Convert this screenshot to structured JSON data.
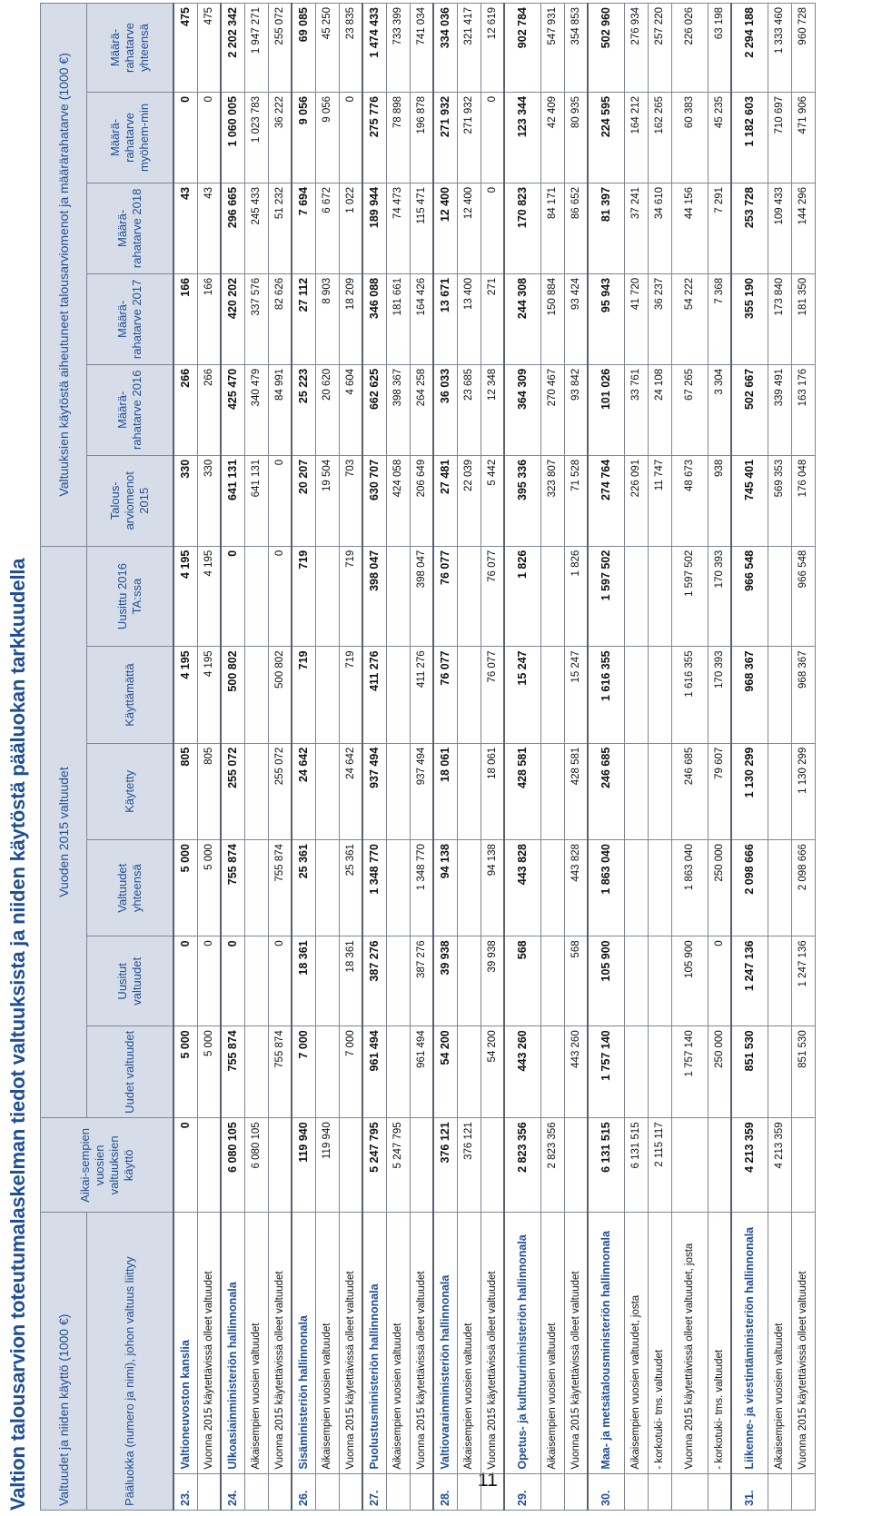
{
  "title": "Valtion talousarvion toteutumalaskelman tiedot valtuuksista ja niiden käytöstä pääluokan tarkkuudella",
  "page_number": "11",
  "header": {
    "group1": "Valtuudet ja niiden käyttö (1000 €)",
    "group2": "Vuoden 2015 valtuudet",
    "group3": "Valtuuksien käytöstä aiheutuneet talousarviomenot ja määrärahatarve (1000 €)",
    "col_label": "Pääluokka (numero ja nimi), johon valtuus liittyy",
    "col_aikai": "Aikai-sempien vuosien valtuuksien käyttö",
    "cols": [
      "Uudet valtuudet",
      "Uusitut valtuudet",
      "Valtuudet yhteensä",
      "Käytetty",
      "Käyttämättä",
      "Uusittu 2016 TA:ssa",
      "Talous-arviomenot 2015",
      "Määrä-rahatarve 2016",
      "Määrä-rahatarve 2017",
      "Määrä-rahatarve 2018",
      "Määrä-rahatarve myöhem-min",
      "Määrä-rahatarve yhteensä"
    ]
  },
  "rows": [
    {
      "nr": "23.",
      "type": "main",
      "label": "Valtioneuvoston kanslia",
      "v": [
        "0",
        "5 000",
        "0",
        "5 000",
        "805",
        "4 195",
        "4 195",
        "330",
        "266",
        "166",
        "43",
        "0",
        "475"
      ]
    },
    {
      "nr": "",
      "type": "sub",
      "label": "Vuonna 2015 käytettävissä olleet valtuudet",
      "v": [
        "",
        "5 000",
        "0",
        "5 000",
        "805",
        "4 195",
        "4 195",
        "330",
        "266",
        "166",
        "43",
        "0",
        "475"
      ]
    },
    {
      "nr": "24.",
      "type": "main",
      "label": "Ulkoasiainministeriön hallinnonala",
      "v": [
        "6 080 105",
        "755 874",
        "0",
        "755 874",
        "255 072",
        "500 802",
        "0",
        "641 131",
        "425 470",
        "420 202",
        "296 665",
        "1 060 005",
        "2 202 342"
      ]
    },
    {
      "nr": "",
      "type": "sub",
      "label": "Aikaisempien vuosien valtuudet",
      "v": [
        "6 080 105",
        "",
        "",
        "",
        "",
        "",
        "",
        "641 131",
        "340 479",
        "337 576",
        "245 433",
        "1 023 783",
        "1 947 271"
      ]
    },
    {
      "nr": "",
      "type": "sub",
      "label": "Vuonna 2015 käytettävissä olleet valtuudet",
      "v": [
        "",
        "755 874",
        "0",
        "755 874",
        "255 072",
        "500 802",
        "0",
        "0",
        "84 991",
        "82 626",
        "51 232",
        "36 222",
        "255 072"
      ]
    },
    {
      "nr": "26.",
      "type": "main",
      "label": "Sisäministeriön hallinnonala",
      "v": [
        "119 940",
        "7 000",
        "18 361",
        "25 361",
        "24 642",
        "719",
        "719",
        "20 207",
        "25 223",
        "27 112",
        "7 694",
        "9 056",
        "69 085"
      ]
    },
    {
      "nr": "",
      "type": "sub",
      "label": "Aikaisempien vuosien valtuudet",
      "v": [
        "119 940",
        "",
        "",
        "",
        "",
        "",
        "",
        "19 504",
        "20 620",
        "8 903",
        "6 672",
        "9 056",
        "45 250"
      ]
    },
    {
      "nr": "",
      "type": "sub",
      "label": "Vuonna 2015 käytettävissä olleet valtuudet",
      "v": [
        "",
        "7 000",
        "18 361",
        "25 361",
        "24 642",
        "719",
        "719",
        "703",
        "4 604",
        "18 209",
        "1 022",
        "0",
        "23 835"
      ]
    },
    {
      "nr": "27.",
      "type": "main",
      "label": "Puolustusministeriön hallinnonala",
      "v": [
        "5 247 795",
        "961 494",
        "387 276",
        "1 348 770",
        "937 494",
        "411 276",
        "398 047",
        "630 707",
        "662 625",
        "346 088",
        "189 944",
        "275 776",
        "1 474 433"
      ]
    },
    {
      "nr": "",
      "type": "sub",
      "label": "Aikaisempien vuosien valtuudet",
      "v": [
        "5 247 795",
        "",
        "",
        "",
        "",
        "",
        "",
        "424 058",
        "398 367",
        "181 661",
        "74 473",
        "78 898",
        "733 399"
      ]
    },
    {
      "nr": "",
      "type": "sub",
      "label": "Vuonna 2015 käytettävissä olleet valtuudet",
      "v": [
        "",
        "961 494",
        "387 276",
        "1 348 770",
        "937 494",
        "411 276",
        "398 047",
        "206 649",
        "264 258",
        "164 426",
        "115 471",
        "196 878",
        "741 034"
      ]
    },
    {
      "nr": "28.",
      "type": "main",
      "label": "Valtiovarainministeriön hallinnonala",
      "v": [
        "376 121",
        "54 200",
        "39 938",
        "94 138",
        "18 061",
        "76 077",
        "76 077",
        "27 481",
        "36 033",
        "13 671",
        "12 400",
        "271 932",
        "334 036"
      ]
    },
    {
      "nr": "",
      "type": "sub",
      "label": "Aikaisempien vuosien valtuudet",
      "v": [
        "376 121",
        "",
        "",
        "",
        "",
        "",
        "",
        "22 039",
        "23 685",
        "13 400",
        "12 400",
        "271 932",
        "321 417"
      ]
    },
    {
      "nr": "",
      "type": "sub",
      "label": "Vuonna 2015 käytettävissä olleet valtuudet",
      "v": [
        "",
        "54 200",
        "39 938",
        "94 138",
        "18 061",
        "76 077",
        "76 077",
        "5 442",
        "12 348",
        "271",
        "0",
        "0",
        "12 619"
      ]
    },
    {
      "nr": "29.",
      "type": "main",
      "tall": true,
      "label": "Opetus- ja kulttuuriministeriön hallinnonala",
      "v": [
        "2 823 356",
        "443 260",
        "568",
        "443 828",
        "428 581",
        "15 247",
        "1 826",
        "395 336",
        "364 309",
        "244 308",
        "170 823",
        "123 344",
        "902 784"
      ]
    },
    {
      "nr": "",
      "type": "sub",
      "label": "Aikaisempien vuosien valtuudet",
      "v": [
        "2 823 356",
        "",
        "",
        "",
        "",
        "",
        "",
        "323 807",
        "270 467",
        "150 884",
        "84 171",
        "42 409",
        "547 931"
      ]
    },
    {
      "nr": "",
      "type": "sub",
      "label": "Vuonna 2015 käytettävissä olleet valtuudet",
      "v": [
        "",
        "443 260",
        "568",
        "443 828",
        "428 581",
        "15 247",
        "1 826",
        "71 528",
        "93 842",
        "93 424",
        "86 652",
        "80 935",
        "354 853"
      ]
    },
    {
      "nr": "30.",
      "type": "main",
      "tall": true,
      "label": "Maa- ja metsätalousministeriön hallinnonala",
      "v": [
        "6 131 515",
        "1 757 140",
        "105 900",
        "1 863 040",
        "246 685",
        "1 616 355",
        "1 597 502",
        "274 764",
        "101 026",
        "95 943",
        "81 397",
        "224 595",
        "502 960"
      ]
    },
    {
      "nr": "",
      "type": "sub",
      "label": "Aikaisempien vuosien valtuudet, josta",
      "v": [
        "6 131 515",
        "",
        "",
        "",
        "",
        "",
        "",
        "226 091",
        "33 761",
        "41 720",
        "37 241",
        "164 212",
        "276 934"
      ]
    },
    {
      "nr": "",
      "type": "sub",
      "label": "- korkotuki- tms. valtuudet",
      "v": [
        "2 115 117",
        "",
        "",
        "",
        "",
        "",
        "",
        "11 747",
        "24 108",
        "36 237",
        "34 610",
        "162 265",
        "257 220"
      ]
    },
    {
      "nr": "",
      "type": "sub",
      "tall": true,
      "label": "Vuonna 2015 käytettävissä olleet valtuudet, josta",
      "v": [
        "",
        "1 757 140",
        "105 900",
        "1 863 040",
        "246 685",
        "1 616 355",
        "1 597 502",
        "48 673",
        "67 265",
        "54 222",
        "44 156",
        "60 383",
        "226 026"
      ]
    },
    {
      "nr": "",
      "type": "sub",
      "label": "- korkotuki- tms. valtuudet",
      "v": [
        "",
        "250 000",
        "0",
        "250 000",
        "79 607",
        "170 393",
        "170 393",
        "938",
        "3 304",
        "7 368",
        "7 291",
        "45 235",
        "63 198"
      ]
    },
    {
      "nr": "31.",
      "type": "main",
      "tall": true,
      "label": "Liikenne- ja viestintäministeriön hallinnonala",
      "v": [
        "4 213 359",
        "851 530",
        "1 247 136",
        "2 098 666",
        "1 130 299",
        "968 367",
        "966 548",
        "745 401",
        "502 667",
        "355 190",
        "253 728",
        "1 182 603",
        "2 294 188"
      ]
    },
    {
      "nr": "",
      "type": "sub",
      "label": "Aikaisempien vuosien valtuudet",
      "v": [
        "4 213 359",
        "",
        "",
        "",
        "",
        "",
        "",
        "569 353",
        "339 491",
        "173 840",
        "109 433",
        "710 697",
        "1 333 460"
      ]
    },
    {
      "nr": "",
      "type": "sub",
      "label": "Vuonna 2015 käytettävissä olleet valtuudet",
      "v": [
        "",
        "851 530",
        "1 247 136",
        "2 098 666",
        "1 130 299",
        "968 367",
        "966 548",
        "176 048",
        "163 176",
        "181 350",
        "144 296",
        "471 906",
        "960 728"
      ]
    }
  ]
}
